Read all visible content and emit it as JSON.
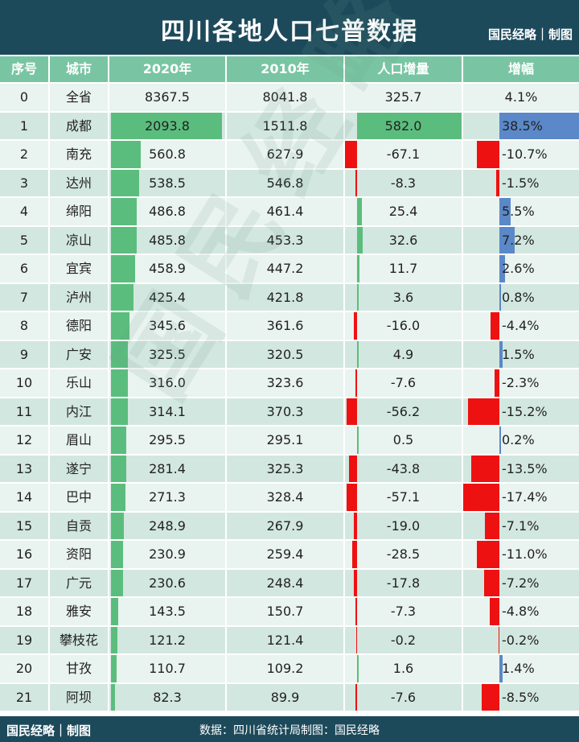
{
  "title": "四川各地人口七普数据",
  "brand": "国民经略｜制图",
  "source": "数据：四川省统计局制图：国民经略",
  "watermark": "国民经略",
  "colors": {
    "header_bg": "#1d4a5b",
    "column_header_bg": "#79c5a3",
    "bar_green": "#5bbd7d",
    "bar_red": "#ee1111",
    "bar_blue": "#5b88c8",
    "row_light": "#e9f3ef",
    "row_dark": "#d2e7df"
  },
  "chart_data": {
    "type": "table",
    "columns": [
      "序号",
      "城市",
      "2020年",
      "2010年",
      "人口增量",
      "增幅"
    ],
    "rows": [
      {
        "idx": "0",
        "city": "全省",
        "p2020": "8367.5",
        "p2010": "8041.8",
        "delta": "325.7",
        "growth": "4.1%",
        "delta_value": 325.7,
        "growth_value": 4.1,
        "p2020_value": 8367.5,
        "has_bars": false
      },
      {
        "idx": "1",
        "city": "成都",
        "p2020": "2093.8",
        "p2010": "1511.8",
        "delta": "582.0",
        "growth": "38.5%",
        "delta_value": 582.0,
        "growth_value": 38.5,
        "p2020_value": 2093.8,
        "has_bars": true
      },
      {
        "idx": "2",
        "city": "南充",
        "p2020": "560.8",
        "p2010": "627.9",
        "delta": "-67.1",
        "growth": "-10.7%",
        "delta_value": -67.1,
        "growth_value": -10.7,
        "p2020_value": 560.8,
        "has_bars": true
      },
      {
        "idx": "3",
        "city": "达州",
        "p2020": "538.5",
        "p2010": "546.8",
        "delta": "-8.3",
        "growth": "-1.5%",
        "delta_value": -8.3,
        "growth_value": -1.5,
        "p2020_value": 538.5,
        "has_bars": true
      },
      {
        "idx": "4",
        "city": "绵阳",
        "p2020": "486.8",
        "p2010": "461.4",
        "delta": "25.4",
        "growth": "5.5%",
        "delta_value": 25.4,
        "growth_value": 5.5,
        "p2020_value": 486.8,
        "has_bars": true
      },
      {
        "idx": "5",
        "city": "凉山",
        "p2020": "485.8",
        "p2010": "453.3",
        "delta": "32.6",
        "growth": "7.2%",
        "delta_value": 32.6,
        "growth_value": 7.2,
        "p2020_value": 485.8,
        "has_bars": true
      },
      {
        "idx": "6",
        "city": "宜宾",
        "p2020": "458.9",
        "p2010": "447.2",
        "delta": "11.7",
        "growth": "2.6%",
        "delta_value": 11.7,
        "growth_value": 2.6,
        "p2020_value": 458.9,
        "has_bars": true
      },
      {
        "idx": "7",
        "city": "泸州",
        "p2020": "425.4",
        "p2010": "421.8",
        "delta": "3.6",
        "growth": "0.8%",
        "delta_value": 3.6,
        "growth_value": 0.8,
        "p2020_value": 425.4,
        "has_bars": true
      },
      {
        "idx": "8",
        "city": "德阳",
        "p2020": "345.6",
        "p2010": "361.6",
        "delta": "-16.0",
        "growth": "-4.4%",
        "delta_value": -16.0,
        "growth_value": -4.4,
        "p2020_value": 345.6,
        "has_bars": true
      },
      {
        "idx": "9",
        "city": "广安",
        "p2020": "325.5",
        "p2010": "320.5",
        "delta": "4.9",
        "growth": "1.5%",
        "delta_value": 4.9,
        "growth_value": 1.5,
        "p2020_value": 325.5,
        "has_bars": true
      },
      {
        "idx": "10",
        "city": "乐山",
        "p2020": "316.0",
        "p2010": "323.6",
        "delta": "-7.6",
        "growth": "-2.3%",
        "delta_value": -7.6,
        "growth_value": -2.3,
        "p2020_value": 316.0,
        "has_bars": true
      },
      {
        "idx": "11",
        "city": "内江",
        "p2020": "314.1",
        "p2010": "370.3",
        "delta": "-56.2",
        "growth": "-15.2%",
        "delta_value": -56.2,
        "growth_value": -15.2,
        "p2020_value": 314.1,
        "has_bars": true
      },
      {
        "idx": "12",
        "city": "眉山",
        "p2020": "295.5",
        "p2010": "295.1",
        "delta": "0.5",
        "growth": "0.2%",
        "delta_value": 0.5,
        "growth_value": 0.2,
        "p2020_value": 295.5,
        "has_bars": true
      },
      {
        "idx": "13",
        "city": "遂宁",
        "p2020": "281.4",
        "p2010": "325.3",
        "delta": "-43.8",
        "growth": "-13.5%",
        "delta_value": -43.8,
        "growth_value": -13.5,
        "p2020_value": 281.4,
        "has_bars": true
      },
      {
        "idx": "14",
        "city": "巴中",
        "p2020": "271.3",
        "p2010": "328.4",
        "delta": "-57.1",
        "growth": "-17.4%",
        "delta_value": -57.1,
        "growth_value": -17.4,
        "p2020_value": 271.3,
        "has_bars": true
      },
      {
        "idx": "15",
        "city": "自贡",
        "p2020": "248.9",
        "p2010": "267.9",
        "delta": "-19.0",
        "growth": "-7.1%",
        "delta_value": -19.0,
        "growth_value": -7.1,
        "p2020_value": 248.9,
        "has_bars": true
      },
      {
        "idx": "16",
        "city": "资阳",
        "p2020": "230.9",
        "p2010": "259.4",
        "delta": "-28.5",
        "growth": "-11.0%",
        "delta_value": -28.5,
        "growth_value": -11.0,
        "p2020_value": 230.9,
        "has_bars": true
      },
      {
        "idx": "17",
        "city": "广元",
        "p2020": "230.6",
        "p2010": "248.4",
        "delta": "-17.8",
        "growth": "-7.2%",
        "delta_value": -17.8,
        "growth_value": -7.2,
        "p2020_value": 230.6,
        "has_bars": true
      },
      {
        "idx": "18",
        "city": "雅安",
        "p2020": "143.5",
        "p2010": "150.7",
        "delta": "-7.3",
        "growth": "-4.8%",
        "delta_value": -7.3,
        "growth_value": -4.8,
        "p2020_value": 143.5,
        "has_bars": true
      },
      {
        "idx": "19",
        "city": "攀枝花",
        "p2020": "121.2",
        "p2010": "121.4",
        "delta": "-0.2",
        "growth": "-0.2%",
        "delta_value": -0.2,
        "growth_value": -0.2,
        "p2020_value": 121.2,
        "has_bars": true
      },
      {
        "idx": "20",
        "city": "甘孜",
        "p2020": "110.7",
        "p2010": "109.2",
        "delta": "1.6",
        "growth": "1.4%",
        "delta_value": 1.6,
        "growth_value": 1.4,
        "p2020_value": 110.7,
        "has_bars": true
      },
      {
        "idx": "21",
        "city": "阿坝",
        "p2020": "82.3",
        "p2010": "89.9",
        "delta": "-7.6",
        "growth": "-8.5%",
        "delta_value": -7.6,
        "growth_value": -8.5,
        "p2020_value": 82.3,
        "has_bars": true
      }
    ]
  }
}
